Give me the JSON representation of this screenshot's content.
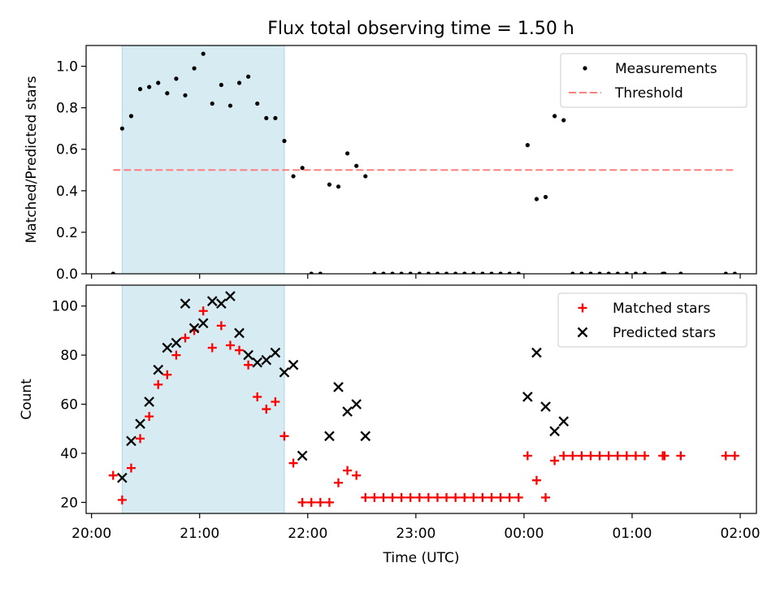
{
  "title": "Flux total observing time = 1.50 h",
  "colors": {
    "shade": "#add8e6",
    "threshold": "#ff7f7f",
    "matched": "#ff0000",
    "predicted": "#000000",
    "measurement": "#000000"
  },
  "chart_data": [
    {
      "type": "scatter",
      "ylabel": "Matched/Predicted stars",
      "xlabel": "",
      "xlim": [
        "19:57",
        "02:09"
      ],
      "ylim": [
        0,
        1.1
      ],
      "yticks": [
        0.0,
        0.2,
        0.4,
        0.6,
        0.8,
        1.0
      ],
      "ytick_labels": [
        "0.0",
        "0.2",
        "0.4",
        "0.6",
        "0.8",
        "1.0"
      ],
      "xticks": [
        "20:00",
        "21:00",
        "22:00",
        "23:00",
        "00:00",
        "01:00",
        "02:00"
      ],
      "xtick_labels": [],
      "legend": {
        "position": "top-right",
        "entries": [
          "Measurements",
          "Threshold"
        ]
      },
      "shaded_interval": [
        "20:17",
        "21:47"
      ],
      "threshold": {
        "name": "Threshold",
        "y": 0.5,
        "x": [
          "20:12",
          "01:57"
        ],
        "style": "dashed"
      },
      "series": [
        {
          "name": "Measurements",
          "marker": "dot",
          "points": [
            [
              "20:12",
              0.0
            ],
            [
              "20:17",
              0.7
            ],
            [
              "20:22",
              0.76
            ],
            [
              "20:27",
              0.89
            ],
            [
              "20:32",
              0.9
            ],
            [
              "20:37",
              0.92
            ],
            [
              "20:42",
              0.87
            ],
            [
              "20:47",
              0.94
            ],
            [
              "20:52",
              0.86
            ],
            [
              "20:57",
              0.99
            ],
            [
              "21:02",
              1.06
            ],
            [
              "21:07",
              0.82
            ],
            [
              "21:12",
              0.91
            ],
            [
              "21:17",
              0.81
            ],
            [
              "21:22",
              0.92
            ],
            [
              "21:27",
              0.95
            ],
            [
              "21:32",
              0.82
            ],
            [
              "21:37",
              0.75
            ],
            [
              "21:42",
              0.75
            ],
            [
              "21:47",
              0.64
            ],
            [
              "21:52",
              0.47
            ],
            [
              "21:57",
              0.51
            ],
            [
              "22:02",
              0.0
            ],
            [
              "22:07",
              0.0
            ],
            [
              "22:12",
              0.43
            ],
            [
              "22:17",
              0.42
            ],
            [
              "22:22",
              0.58
            ],
            [
              "22:27",
              0.52
            ],
            [
              "22:32",
              0.47
            ],
            [
              "22:37",
              0.0
            ],
            [
              "22:42",
              0.0
            ],
            [
              "22:47",
              0.0
            ],
            [
              "22:52",
              0.0
            ],
            [
              "22:57",
              0.0
            ],
            [
              "23:02",
              0.0
            ],
            [
              "23:07",
              0.0
            ],
            [
              "23:12",
              0.0
            ],
            [
              "23:17",
              0.0
            ],
            [
              "23:22",
              0.0
            ],
            [
              "23:27",
              0.0
            ],
            [
              "23:32",
              0.0
            ],
            [
              "23:37",
              0.0
            ],
            [
              "23:42",
              0.0
            ],
            [
              "23:47",
              0.0
            ],
            [
              "23:52",
              0.0
            ],
            [
              "23:57",
              0.0
            ],
            [
              "00:02",
              0.62
            ],
            [
              "00:07",
              0.36
            ],
            [
              "00:12",
              0.37
            ],
            [
              "00:17",
              0.76
            ],
            [
              "00:22",
              0.74
            ],
            [
              "00:27",
              0.0
            ],
            [
              "00:32",
              0.0
            ],
            [
              "00:37",
              0.0
            ],
            [
              "00:42",
              0.0
            ],
            [
              "00:47",
              0.0
            ],
            [
              "00:52",
              0.0
            ],
            [
              "00:57",
              0.0
            ],
            [
              "01:02",
              0.0
            ],
            [
              "01:07",
              0.0
            ],
            [
              "01:17",
              0.0
            ],
            [
              "01:18",
              0.0
            ],
            [
              "01:27",
              0.0
            ],
            [
              "01:52",
              0.0
            ],
            [
              "01:57",
              0.0
            ]
          ]
        }
      ]
    },
    {
      "type": "scatter",
      "ylabel": "Count",
      "xlabel": "Time (UTC)",
      "xlim": [
        "19:57",
        "02:09"
      ],
      "ylim": [
        15.5,
        108.5
      ],
      "yticks": [
        20,
        40,
        60,
        80,
        100
      ],
      "ytick_labels": [
        "20",
        "40",
        "60",
        "80",
        "100"
      ],
      "xticks": [
        "20:00",
        "21:00",
        "22:00",
        "23:00",
        "00:00",
        "01:00",
        "02:00"
      ],
      "xtick_labels": [
        "20:00",
        "21:00",
        "22:00",
        "23:00",
        "00:00",
        "01:00",
        "02:00"
      ],
      "legend": {
        "position": "top-right",
        "entries": [
          "Matched stars",
          "Predicted stars"
        ]
      },
      "shaded_interval": [
        "20:17",
        "21:47"
      ],
      "series": [
        {
          "name": "Matched stars",
          "marker": "plus",
          "points": [
            [
              "20:12",
              31
            ],
            [
              "20:17",
              21
            ],
            [
              "20:22",
              34
            ],
            [
              "20:27",
              46
            ],
            [
              "20:32",
              55
            ],
            [
              "20:37",
              68
            ],
            [
              "20:42",
              72
            ],
            [
              "20:47",
              80
            ],
            [
              "20:52",
              87
            ],
            [
              "20:57",
              90
            ],
            [
              "21:02",
              98
            ],
            [
              "21:07",
              83
            ],
            [
              "21:12",
              92
            ],
            [
              "21:17",
              84
            ],
            [
              "21:22",
              82
            ],
            [
              "21:27",
              76
            ],
            [
              "21:32",
              63
            ],
            [
              "21:37",
              58
            ],
            [
              "21:42",
              61
            ],
            [
              "21:47",
              47
            ],
            [
              "21:52",
              36
            ],
            [
              "21:57",
              20
            ],
            [
              "22:02",
              20
            ],
            [
              "22:07",
              20
            ],
            [
              "22:12",
              20
            ],
            [
              "22:17",
              28
            ],
            [
              "22:22",
              33
            ],
            [
              "22:27",
              31
            ],
            [
              "22:32",
              22
            ],
            [
              "22:37",
              22
            ],
            [
              "22:42",
              22
            ],
            [
              "22:47",
              22
            ],
            [
              "22:52",
              22
            ],
            [
              "22:57",
              22
            ],
            [
              "23:02",
              22
            ],
            [
              "23:07",
              22
            ],
            [
              "23:12",
              22
            ],
            [
              "23:17",
              22
            ],
            [
              "23:22",
              22
            ],
            [
              "23:27",
              22
            ],
            [
              "23:32",
              22
            ],
            [
              "23:37",
              22
            ],
            [
              "23:42",
              22
            ],
            [
              "23:47",
              22
            ],
            [
              "23:52",
              22
            ],
            [
              "23:57",
              22
            ],
            [
              "00:02",
              39
            ],
            [
              "00:07",
              29
            ],
            [
              "00:12",
              22
            ],
            [
              "00:17",
              37
            ],
            [
              "00:22",
              39
            ],
            [
              "00:27",
              39
            ],
            [
              "00:32",
              39
            ],
            [
              "00:37",
              39
            ],
            [
              "00:42",
              39
            ],
            [
              "00:47",
              39
            ],
            [
              "00:52",
              39
            ],
            [
              "00:57",
              39
            ],
            [
              "01:02",
              39
            ],
            [
              "01:07",
              39
            ],
            [
              "01:17",
              39
            ],
            [
              "01:18",
              39
            ],
            [
              "01:27",
              39
            ],
            [
              "01:52",
              39
            ],
            [
              "01:57",
              39
            ]
          ]
        },
        {
          "name": "Predicted stars",
          "marker": "x",
          "points": [
            [
              "20:17",
              30
            ],
            [
              "20:22",
              45
            ],
            [
              "20:27",
              52
            ],
            [
              "20:32",
              61
            ],
            [
              "20:37",
              74
            ],
            [
              "20:42",
              83
            ],
            [
              "20:47",
              85
            ],
            [
              "20:52",
              101
            ],
            [
              "20:57",
              91
            ],
            [
              "21:02",
              93
            ],
            [
              "21:07",
              102
            ],
            [
              "21:12",
              101
            ],
            [
              "21:17",
              104
            ],
            [
              "21:22",
              89
            ],
            [
              "21:27",
              80
            ],
            [
              "21:32",
              77
            ],
            [
              "21:37",
              78
            ],
            [
              "21:42",
              81
            ],
            [
              "21:47",
              73
            ],
            [
              "21:52",
              76
            ],
            [
              "21:57",
              39
            ],
            [
              "22:12",
              47
            ],
            [
              "22:17",
              67
            ],
            [
              "22:22",
              57
            ],
            [
              "22:27",
              60
            ],
            [
              "22:32",
              47
            ],
            [
              "00:02",
              63
            ],
            [
              "00:07",
              81
            ],
            [
              "00:12",
              59
            ],
            [
              "00:17",
              49
            ],
            [
              "00:22",
              53
            ]
          ]
        }
      ]
    }
  ]
}
